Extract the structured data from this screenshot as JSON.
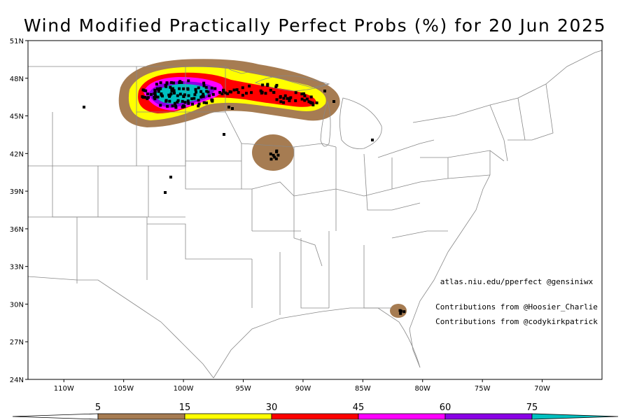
{
  "title": "Wind Modified Practically Perfect Probs (%) for 20 Jun 2025",
  "map": {
    "lat_labels": [
      {
        "value": 51,
        "label": "51N"
      },
      {
        "value": 48,
        "label": "48N"
      },
      {
        "value": 45,
        "label": "45N"
      },
      {
        "value": 42,
        "label": "42N"
      },
      {
        "value": 39,
        "label": "39N"
      },
      {
        "value": 36,
        "label": "36N"
      },
      {
        "value": 33,
        "label": "33N"
      },
      {
        "value": 30,
        "label": "30N"
      },
      {
        "value": 27,
        "label": "27N"
      },
      {
        "value": 24,
        "label": "24N"
      }
    ],
    "lon_labels": [
      {
        "value": -110,
        "label": "110W"
      },
      {
        "value": -105,
        "label": "105W"
      },
      {
        "value": -100,
        "label": "100W"
      },
      {
        "value": -95,
        "label": "95W"
      },
      {
        "value": -90,
        "label": "90W"
      },
      {
        "value": -85,
        "label": "85W"
      },
      {
        "value": -80,
        "label": "80W"
      },
      {
        "value": -75,
        "label": "75W"
      },
      {
        "value": -70,
        "label": "70W"
      }
    ],
    "lon_range": [
      -113,
      -65
    ],
    "lat_range": [
      24,
      51
    ]
  },
  "credits": [
    "atlas.niu.edu/pperfect @gensiniwx",
    "Contributions from @Hoosier_Charlie",
    "Contributions from @codykirkpatrick"
  ],
  "colorbar": {
    "levels": [
      "5",
      "15",
      "30",
      "45",
      "60",
      "75"
    ],
    "colors": [
      "#a67c52",
      "#ffff00",
      "#ff0000",
      "#ff00ff",
      "#8a00e6",
      "#00c0c0"
    ]
  },
  "colors": {
    "brown": "#a67c52",
    "yellow": "#ffff00",
    "red": "#ff0000",
    "magenta": "#ff00ff",
    "purple": "#8a00e6",
    "cyan": "#00c0c0"
  }
}
